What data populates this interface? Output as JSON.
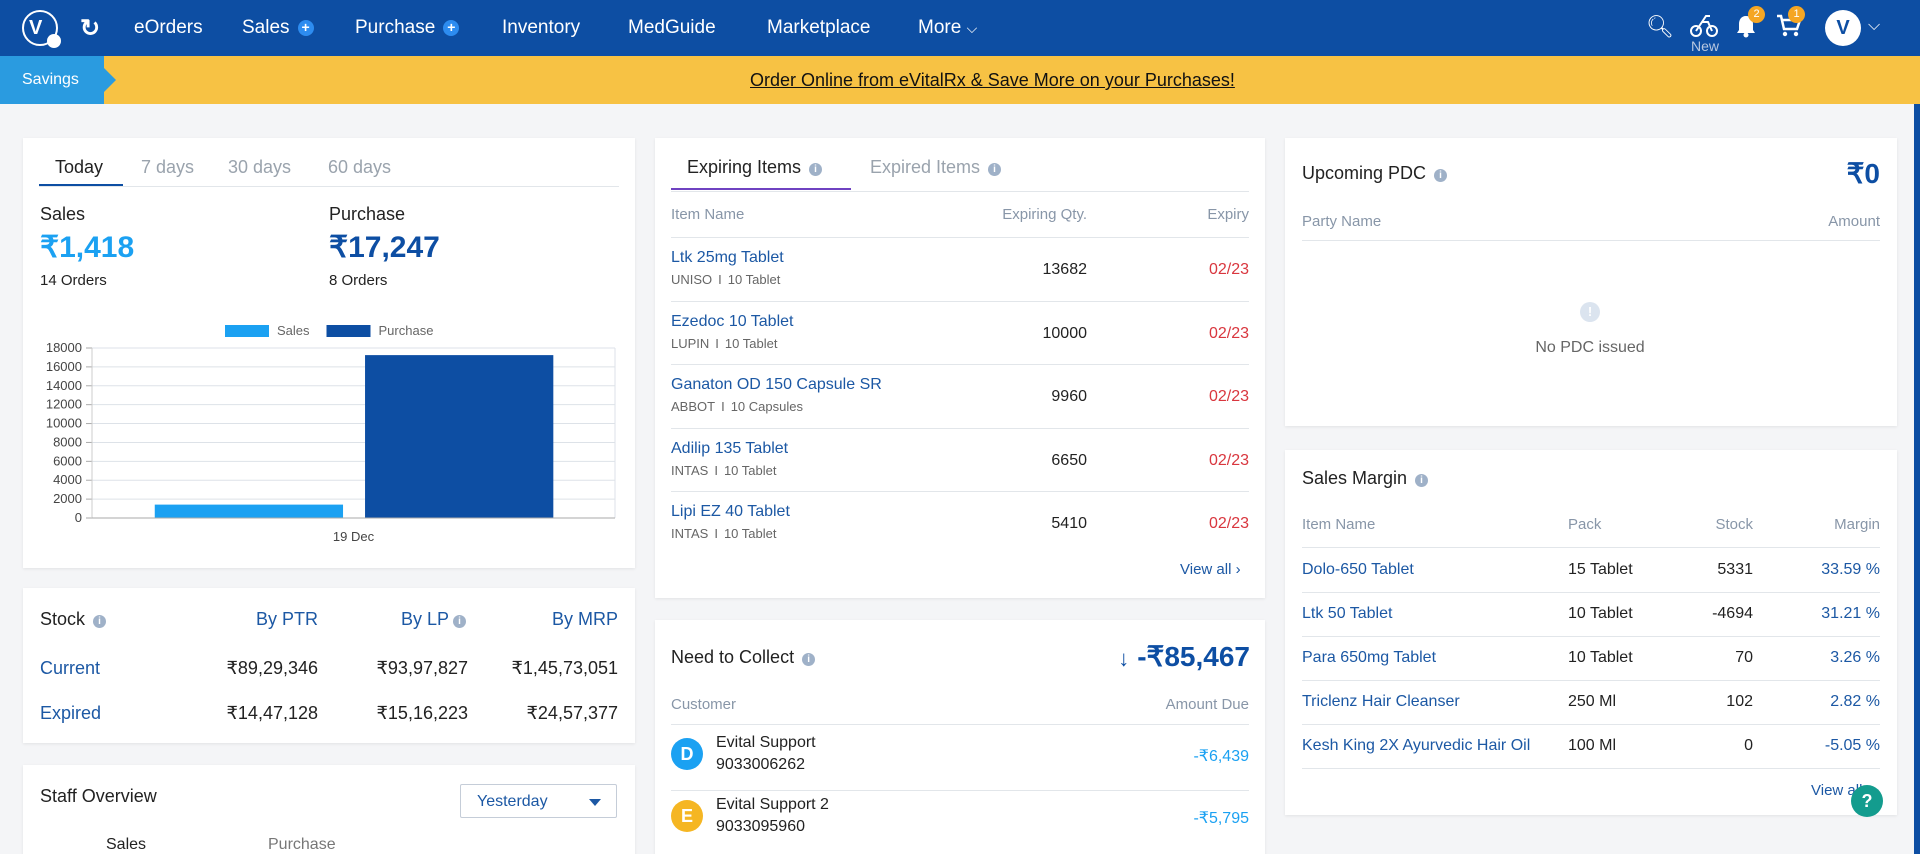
{
  "nav": {
    "items": [
      {
        "label": "eOrders",
        "plus": false
      },
      {
        "label": "Sales",
        "plus": true
      },
      {
        "label": "Purchase",
        "plus": true
      },
      {
        "label": "Inventory",
        "plus": false
      },
      {
        "label": "MedGuide",
        "plus": false
      },
      {
        "label": "Marketplace",
        "plus": false
      },
      {
        "label": "More",
        "plus": false
      }
    ],
    "new_label": "New",
    "notifications_count": "2",
    "cart_count": "1",
    "logo_letter": "V",
    "avatar_letter": "V"
  },
  "banner": {
    "tag": "Savings",
    "text": "Order Online from eVitalRx & Save More on your Purchases!"
  },
  "summary": {
    "tabs": [
      "Today",
      "7 days",
      "30 days",
      "60 days"
    ],
    "sales_label": "Sales",
    "sales_value": "₹1,418",
    "sales_orders": "14 Orders",
    "purchase_label": "Purchase",
    "purchase_value": "₹17,247",
    "purchase_orders": "8 Orders"
  },
  "chart_data": {
    "type": "bar",
    "categories": [
      "19 Dec"
    ],
    "series": [
      {
        "name": "Sales",
        "values": [
          1418
        ],
        "color": "#1ba1f2"
      },
      {
        "name": "Purchase",
        "values": [
          17247
        ],
        "color": "#0d4ea3"
      }
    ],
    "ylim": [
      0,
      18000
    ],
    "yticks": [
      0,
      2000,
      4000,
      6000,
      8000,
      10000,
      12000,
      14000,
      16000,
      18000
    ],
    "legend": "top-center",
    "grid": true
  },
  "stock": {
    "title": "Stock",
    "cols": [
      "By PTR",
      "By LP",
      "By MRP"
    ],
    "rows": [
      {
        "label": "Current",
        "values": [
          "₹89,29,346",
          "₹93,97,827",
          "₹1,45,73,051"
        ]
      },
      {
        "label": "Expired",
        "values": [
          "₹14,47,128",
          "₹15,16,223",
          "₹24,57,377"
        ]
      }
    ]
  },
  "staff": {
    "title": "Staff Overview",
    "period": "Yesterday",
    "col1": "Sales",
    "col2": "Purchase"
  },
  "expiring": {
    "tabs": [
      "Expiring Items",
      "Expired Items"
    ],
    "headers": [
      "Item Name",
      "Expiring Qty.",
      "Expiry"
    ],
    "rows": [
      {
        "name": "Ltk 25mg Tablet",
        "maker": "UNISO",
        "pack": "10 Tablet",
        "qty": "13682",
        "expiry": "02/23"
      },
      {
        "name": "Ezedoc 10 Tablet",
        "maker": "LUPIN",
        "pack": "10 Tablet",
        "qty": "10000",
        "expiry": "02/23"
      },
      {
        "name": "Ganaton OD 150 Capsule SR",
        "maker": "ABBOT",
        "pack": "10 Capsules",
        "qty": "9960",
        "expiry": "02/23"
      },
      {
        "name": "Adilip 135 Tablet",
        "maker": "INTAS",
        "pack": "10 Tablet",
        "qty": "6650",
        "expiry": "02/23"
      },
      {
        "name": "Lipi EZ 40 Tablet",
        "maker": "INTAS",
        "pack": "10 Tablet",
        "qty": "5410",
        "expiry": "02/23"
      }
    ],
    "view_all": "View all"
  },
  "collect": {
    "title": "Need to Collect",
    "total": "-₹85,467",
    "headers": [
      "Customer",
      "Amount Due"
    ],
    "rows": [
      {
        "initial": "D",
        "name": "Evital Support",
        "phone": "9033006262",
        "amount": "-₹6,439",
        "color": "#1ba1f2"
      },
      {
        "initial": "E",
        "name": "Evital Support 2",
        "phone": "9033095960",
        "amount": "-₹5,795",
        "color": "#f5b623"
      }
    ]
  },
  "pdc": {
    "title": "Upcoming PDC",
    "total": "₹0",
    "headers": [
      "Party Name",
      "Amount"
    ],
    "empty": "No PDC issued"
  },
  "margin": {
    "title": "Sales Margin",
    "headers": [
      "Item Name",
      "Pack",
      "Stock",
      "Margin"
    ],
    "rows": [
      {
        "name": "Dolo-650 Tablet",
        "pack": "15 Tablet",
        "stock": "5331",
        "margin": "33.59 %"
      },
      {
        "name": "Ltk 50 Tablet",
        "pack": "10 Tablet",
        "stock": "-4694",
        "margin": "31.21 %"
      },
      {
        "name": "Para 650mg Tablet",
        "pack": "10 Tablet",
        "stock": "70",
        "margin": "3.26 %"
      },
      {
        "name": "Triclenz Hair Cleanser",
        "pack": "250 Ml",
        "stock": "102",
        "margin": "2.82 %"
      },
      {
        "name": "Kesh King 2X Ayurvedic Hair Oil",
        "pack": "100 Ml",
        "stock": "0",
        "margin": "-5.05 %"
      }
    ],
    "view_all": "View all",
    "help": "?"
  }
}
